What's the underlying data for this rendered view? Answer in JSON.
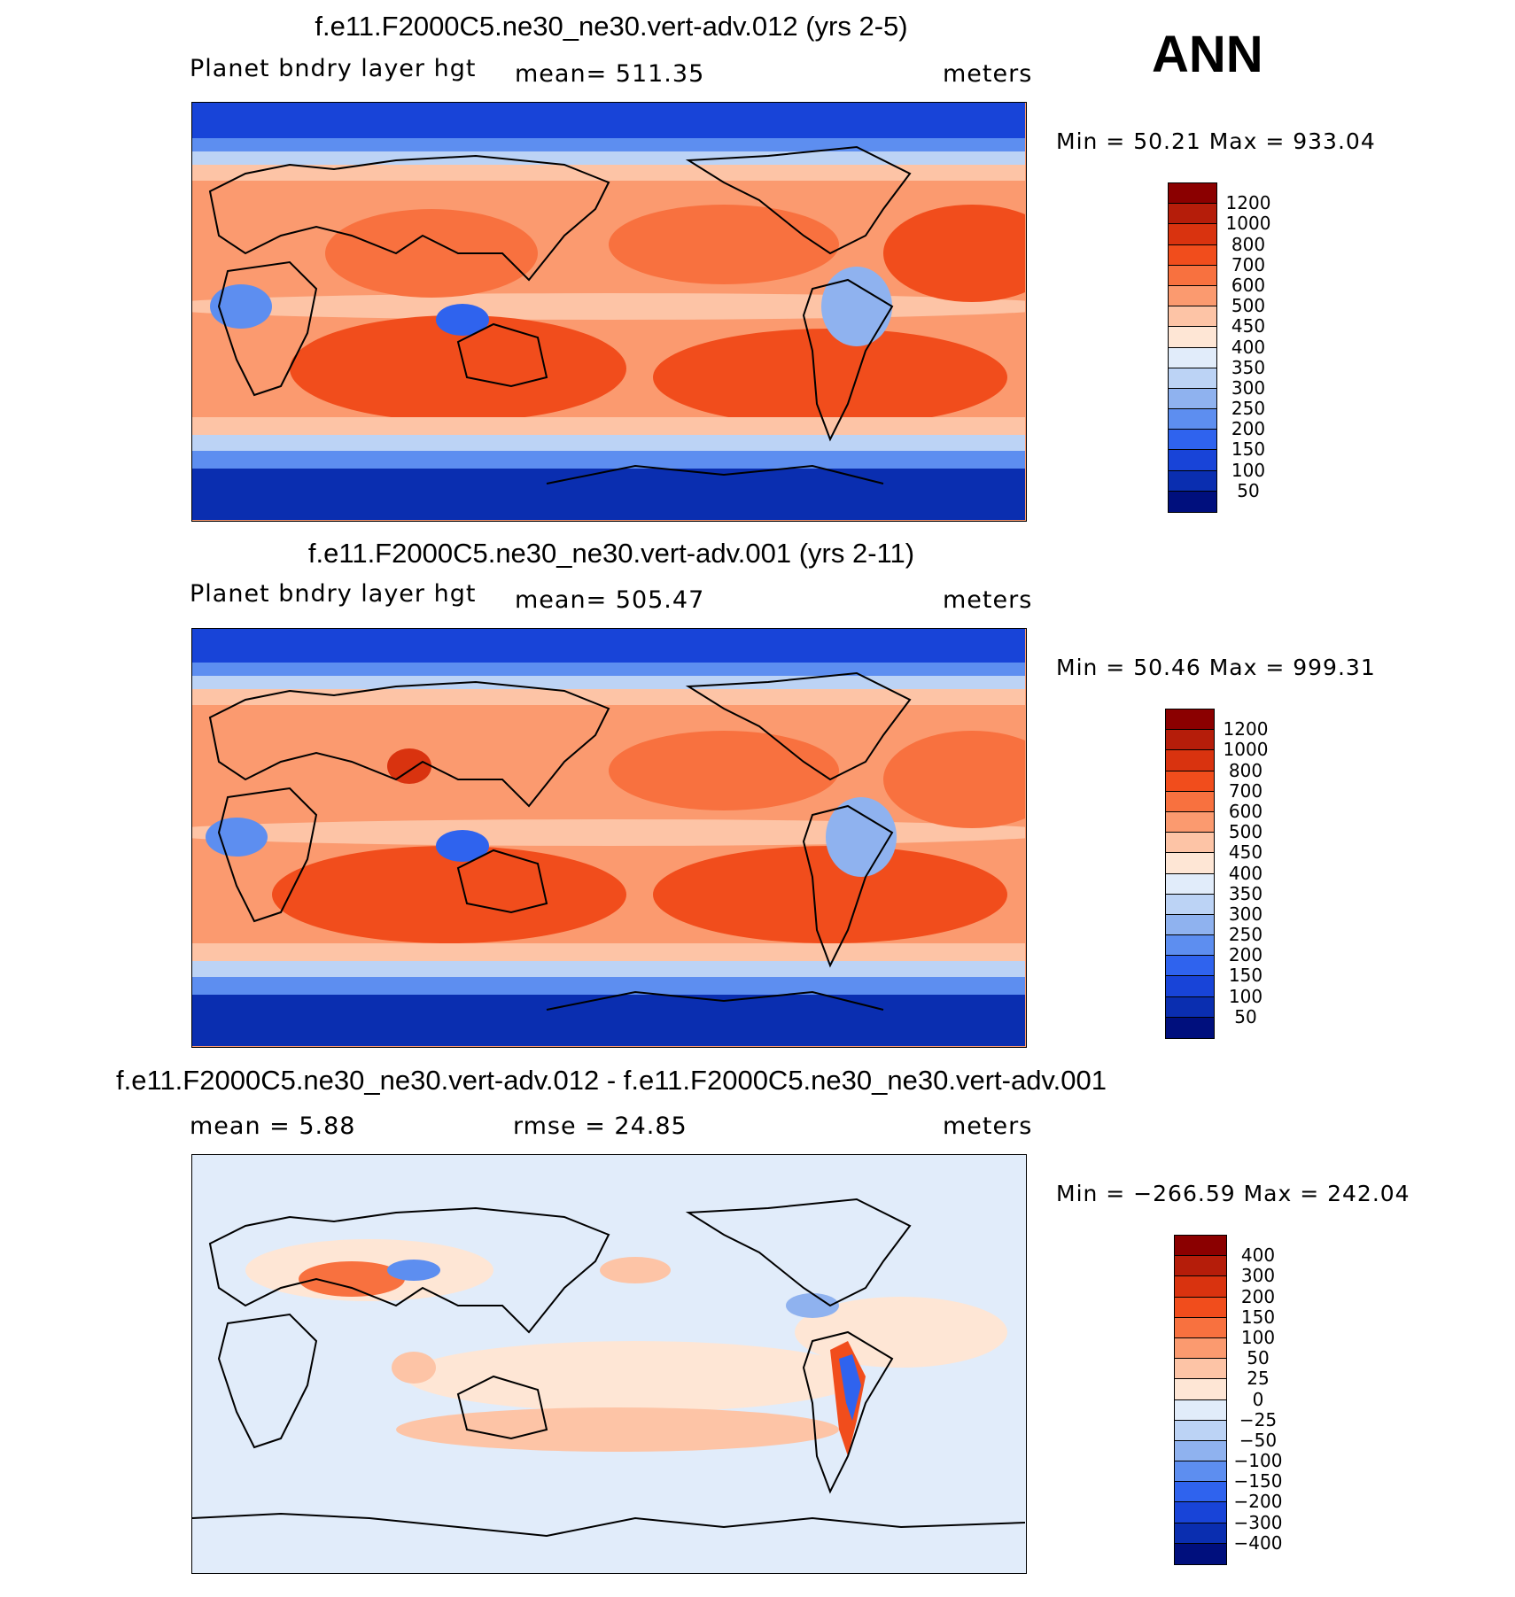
{
  "season": "ANN",
  "panels": [
    {
      "title": "f.e11.F2000C5.ne30_ne30.vert-adv.012 (yrs 2-5)",
      "left_label": "Planet bndry layer hgt",
      "center_label": "mean=  511.35",
      "units": "meters",
      "minmax": "Min =   50.21  Max  =  933.04",
      "levels": [
        "1200",
        "1000",
        "800",
        "700",
        "600",
        "500",
        "450",
        "400",
        "350",
        "300",
        "250",
        "200",
        "150",
        "100",
        "50"
      ],
      "colors": [
        "#8b0000",
        "#b51d0a",
        "#d9330f",
        "#f14d1c",
        "#f8713f",
        "#fb9a6f",
        "#fdc4a6",
        "#fee6d5",
        "#e1ecfa",
        "#bcd3f5",
        "#8fb2ef",
        "#5d8ef0",
        "#2f63ee",
        "#1844d8",
        "#0a2eb0",
        "#000f7d"
      ]
    },
    {
      "title": "f.e11.F2000C5.ne30_ne30.vert-adv.001 (yrs 2-11)",
      "left_label": "Planet bndry layer hgt",
      "center_label": "mean=  505.47",
      "units": "meters",
      "minmax": "Min =   50.46  Max  =  999.31",
      "levels": [
        "1200",
        "1000",
        "800",
        "700",
        "600",
        "500",
        "450",
        "400",
        "350",
        "300",
        "250",
        "200",
        "150",
        "100",
        "50"
      ],
      "colors": [
        "#8b0000",
        "#b51d0a",
        "#d9330f",
        "#f14d1c",
        "#f8713f",
        "#fb9a6f",
        "#fdc4a6",
        "#fee6d5",
        "#e1ecfa",
        "#bcd3f5",
        "#8fb2ef",
        "#5d8ef0",
        "#2f63ee",
        "#1844d8",
        "#0a2eb0",
        "#000f7d"
      ]
    },
    {
      "title": "f.e11.F2000C5.ne30_ne30.vert-adv.012 - f.e11.F2000C5.ne30_ne30.vert-adv.001",
      "left_label": "mean =     5.88",
      "center_label": "rmse =    24.85",
      "units": "meters",
      "minmax": "Min = −266.59  Max  =  242.04",
      "levels": [
        "400",
        "300",
        "200",
        "150",
        "100",
        "50",
        "25",
        "0",
        "−25",
        "−50",
        "−100",
        "−150",
        "−200",
        "−300",
        "−400"
      ],
      "colors": [
        "#8b0000",
        "#b51d0a",
        "#d9330f",
        "#f14d1c",
        "#f8713f",
        "#fb9a6f",
        "#fdc4a6",
        "#fee6d5",
        "#e1ecfa",
        "#bcd3f5",
        "#8fb2ef",
        "#5d8ef0",
        "#2f63ee",
        "#1844d8",
        "#0a2eb0",
        "#000f7d"
      ]
    }
  ]
}
